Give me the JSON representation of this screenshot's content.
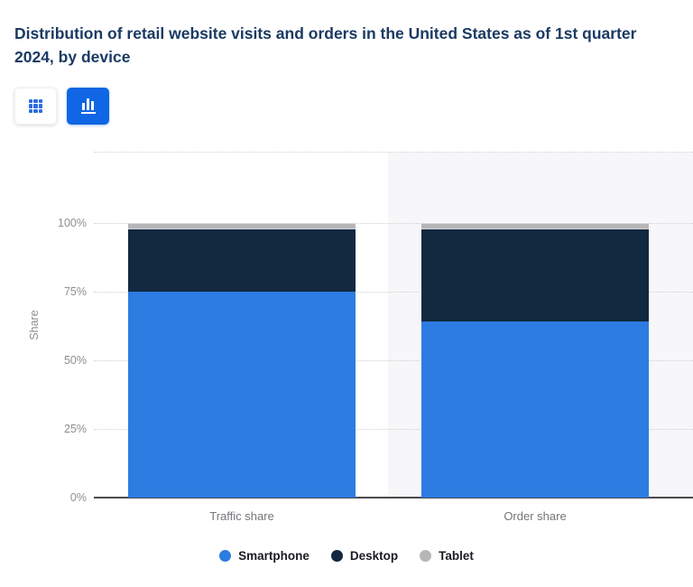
{
  "header": {
    "title": "Distribution of retail website visits and orders in the United States as of 1st quarter 2024, by device"
  },
  "toolbar": {
    "buttons": [
      {
        "name": "table-view",
        "icon": "grid-icon",
        "active": false
      },
      {
        "name": "chart-view",
        "icon": "bar-chart-icon",
        "active": true
      }
    ],
    "active_color": "#1066e4"
  },
  "chart_data": {
    "type": "bar",
    "stacked": true,
    "orientation": "vertical",
    "categories": [
      "Traffic share",
      "Order share"
    ],
    "series": [
      {
        "name": "Smartphone",
        "color": "#2d7ce1",
        "values": [
          75,
          64
        ]
      },
      {
        "name": "Desktop",
        "color": "#122940",
        "values": [
          23,
          34
        ]
      },
      {
        "name": "Tablet",
        "color": "#b7b5b8",
        "values": [
          2,
          2
        ]
      }
    ],
    "title": "Distribution of retail website visits and orders in the United States as of 1st quarter 2024, by device",
    "xlabel": "",
    "ylabel": "Share",
    "ylim": [
      0,
      100
    ],
    "yticks": [
      "0%",
      "25%",
      "50%",
      "75%",
      "100%"
    ],
    "grid": "horizontal-dotted",
    "legend_position": "bottom",
    "highlighted_category": "Order share"
  }
}
